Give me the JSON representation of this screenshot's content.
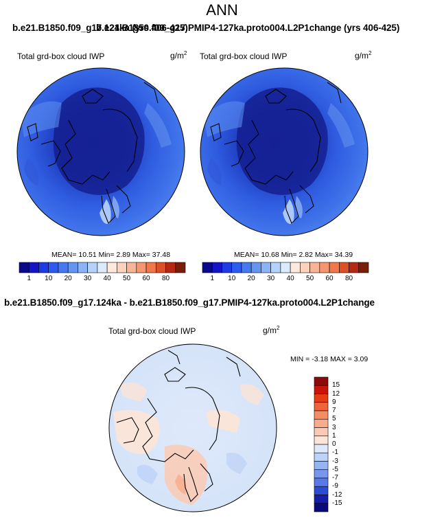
{
  "header": {
    "title": "ANN",
    "case_line_overlap_a": "b.e21.B1850.f09_g17.124ka (yrs 406-425)",
    "case_line_overlap_b": "b.e21.B1850.f09_g17.PMIP4-127ka.proto004.L2P1change (yrs 406-425)",
    "diff_line": "b.e21.B1850.f09_g17.124ka - b.e21.B1850.f09_g17.PMIP4-127ka.proto004.L2P1change"
  },
  "panel_left": {
    "varname": "Total grd-box cloud IWP",
    "units_base": "g/m",
    "units_sup": "2",
    "stats": "MEAN=  10.51  Min=   2.89  Max=  37.48"
  },
  "panel_right": {
    "varname": "Total grd-box cloud IWP",
    "units_base": "g/m",
    "units_sup": "2",
    "stats": "MEAN=  10.68  Min=   2.82  Max=  34.39"
  },
  "panel_diff": {
    "varname": "Total grd-box cloud IWP",
    "units_base": "g/m",
    "units_sup": "2",
    "stats": "MIN =  -3.18 MAX =   3.09"
  },
  "chart_data": [
    {
      "type": "heatmap",
      "projection": "north polar stereographic",
      "title": "Total grd-box cloud IWP",
      "units": "g/m2",
      "mean": 10.51,
      "min": 2.89,
      "max": 37.48,
      "colorbar_levels": [
        1,
        10,
        20,
        30,
        40,
        50,
        60,
        80
      ],
      "colorbar_colors": [
        "#0a0a8c",
        "#1414c8",
        "#1e3ce6",
        "#2d5af0",
        "#4678f0",
        "#6496f0",
        "#8cb4f5",
        "#b4d2fa",
        "#dceafc",
        "#ffe8dc",
        "#fcd2bc",
        "#f8b496",
        "#f49670",
        "#f0784a",
        "#dc5028",
        "#b42814",
        "#781e0a"
      ],
      "colorbar_ticks": [
        "1",
        "10",
        "20",
        "30",
        "40",
        "50",
        "60",
        "80"
      ]
    },
    {
      "type": "heatmap",
      "projection": "north polar stereographic",
      "title": "Total grd-box cloud IWP",
      "units": "g/m2",
      "mean": 10.68,
      "min": 2.82,
      "max": 34.39,
      "colorbar_levels": [
        1,
        10,
        20,
        30,
        40,
        50,
        60,
        80
      ],
      "colorbar_ticks": [
        "1",
        "10",
        "20",
        "30",
        "40",
        "50",
        "60",
        "80"
      ]
    },
    {
      "type": "heatmap",
      "projection": "north polar stereographic",
      "title": "Total grd-box cloud IWP",
      "units": "g/m2",
      "min": -3.18,
      "max": 3.09,
      "colorbar_levels": [
        15,
        12,
        9,
        7,
        5,
        3,
        1,
        0,
        -1,
        -3,
        -5,
        -7,
        -9,
        -12,
        -15
      ],
      "colorbar_ticks": [
        "15",
        "12",
        "9",
        "7",
        "5",
        "3",
        "1",
        "0",
        "-1",
        "-3",
        "-5",
        "-7",
        "-9",
        "-12",
        "-15"
      ],
      "colorbar_colors": [
        "#8c0a0a",
        "#c8140a",
        "#e63c14",
        "#f0643c",
        "#f48c64",
        "#f8ac8c",
        "#fccab4",
        "#fde4d6",
        "#dde9fa",
        "#bcd2f7",
        "#96b4f0",
        "#7896ec",
        "#5a78e6",
        "#2d4bd2",
        "#141eaa",
        "#0a0a78"
      ]
    }
  ]
}
